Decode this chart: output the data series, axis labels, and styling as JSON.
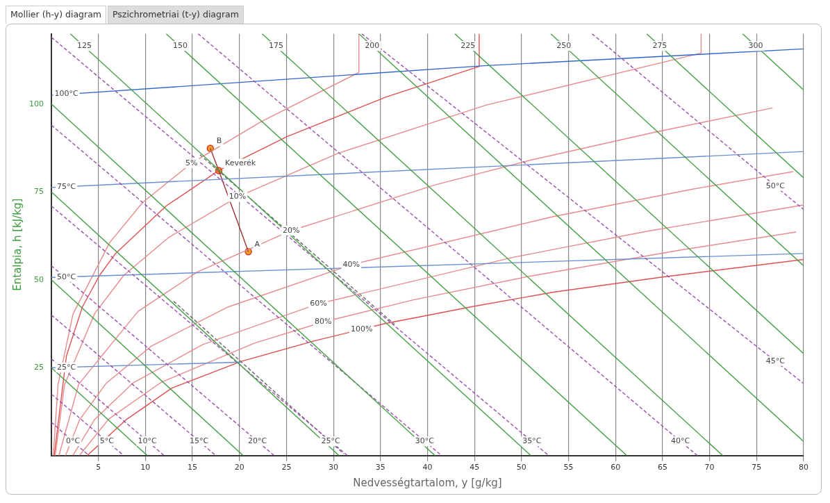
{
  "chart_data": {
    "type": "line",
    "title": "Mollier (h-y) diagram",
    "xlabel": "Nedvességtartalom, y [g/kg]",
    "ylabel": "Entalpia, h [kJ/kg]",
    "xlim": [
      0,
      80
    ],
    "ylim": [
      0,
      120
    ],
    "xticks": [
      5,
      10,
      15,
      20,
      25,
      30,
      35,
      40,
      45,
      50,
      55,
      60,
      65,
      70,
      75,
      80
    ],
    "yticks": [
      25,
      50,
      75,
      100
    ],
    "grid": "x",
    "legend": false,
    "marker": "none",
    "line_style": "solid",
    "series": [
      {
        "color": "#45a045",
        "x": [
          0,
          10.2
        ],
        "values": [
          25,
          0
        ]
      },
      {
        "color": "#45a045",
        "x": [
          0,
          20.4
        ],
        "values": [
          50,
          0
        ]
      },
      {
        "color": "#45a045",
        "x": [
          0,
          30.6
        ],
        "values": [
          75,
          0
        ]
      },
      {
        "color": "#45a045",
        "x": [
          0,
          40.8
        ],
        "values": [
          100,
          0
        ]
      },
      {
        "color": "#45a045",
        "x": [
          2,
          51
        ],
        "values": [
          120,
          0
        ]
      },
      {
        "color": "#45a045",
        "x": [
          12.2,
          61.2
        ],
        "values": [
          120,
          0
        ]
      },
      {
        "color": "#45a045",
        "x": [
          22.4,
          71.4
        ],
        "values": [
          120,
          0
        ]
      },
      {
        "color": "#45a045",
        "x": [
          32.7,
          80
        ],
        "values": [
          120,
          4
        ]
      },
      {
        "color": "#45a045",
        "x": [
          42.9,
          80
        ],
        "values": [
          120,
          29
        ]
      },
      {
        "color": "#45a045",
        "x": [
          53.1,
          80
        ],
        "values": [
          120,
          54
        ]
      },
      {
        "color": "#45a045",
        "x": [
          63.3,
          80
        ],
        "values": [
          120,
          79
        ]
      },
      {
        "color": "#45a045",
        "x": [
          73.5,
          80
        ],
        "values": [
          120,
          104
        ]
      },
      {
        "color": "#9b4fb0",
        "line_style": "dashed",
        "x": [
          0,
          4
        ],
        "values": [
          9.5,
          0
        ]
      },
      {
        "color": "#9b4fb0",
        "line_style": "dashed",
        "x": [
          0,
          7.7
        ],
        "values": [
          17.5,
          0
        ]
      },
      {
        "color": "#9b4fb0",
        "line_style": "dashed",
        "x": [
          0,
          12
        ],
        "values": [
          27.5,
          0
        ]
      },
      {
        "color": "#9b4fb0",
        "line_style": "dashed",
        "x": [
          0,
          17.5
        ],
        "values": [
          40,
          0
        ]
      },
      {
        "color": "#9b4fb0",
        "line_style": "dashed",
        "x": [
          0,
          23.7
        ],
        "values": [
          54,
          0
        ]
      },
      {
        "color": "#9b4fb0",
        "line_style": "dashed",
        "x": [
          0,
          31.5
        ],
        "values": [
          71,
          0
        ]
      },
      {
        "color": "#9b4fb0",
        "line_style": "dashed",
        "x": [
          0,
          41.5
        ],
        "values": [
          94,
          0
        ]
      },
      {
        "color": "#9b4fb0",
        "line_style": "dashed",
        "x": [
          0,
          52.9
        ],
        "values": [
          119,
          0
        ]
      },
      {
        "color": "#9b4fb0",
        "line_style": "dashed",
        "x": [
          15.6,
          68.7
        ],
        "values": [
          120,
          0
        ]
      },
      {
        "color": "#9b4fb0",
        "line_style": "dashed",
        "x": [
          33,
          80
        ],
        "values": [
          120,
          20.5
        ]
      },
      {
        "color": "#9b4fb0",
        "line_style": "dashed",
        "x": [
          57.5,
          80
        ],
        "values": [
          120,
          70
        ]
      },
      {
        "color": "#3366cc",
        "x": [
          0,
          46,
          80
        ],
        "values": [
          102.5,
          110.9,
          115.7
        ]
      },
      {
        "color": "#6a8fcf",
        "x": [
          0,
          80
        ],
        "values": [
          76.3,
          86.5
        ]
      },
      {
        "color": "#6a8fcf",
        "x": [
          0,
          80
        ],
        "values": [
          50.7,
          57.5
        ]
      },
      {
        "color": "#6a8fcf",
        "x": [
          0,
          20.2
        ],
        "values": [
          25,
          26.6
        ]
      },
      {
        "color": "#e05050",
        "x": [
          3.8,
          7.9,
          12.8,
          20.2,
          27.9,
          35.4,
          45,
          53.4,
          65,
          80
        ],
        "values": [
          0,
          10.1,
          19.2,
          26.8,
          32.6,
          37.5,
          42.5,
          46.5,
          50.8,
          55.8
        ]
      },
      {
        "color": "#e88a8a",
        "x": [
          3,
          6.1,
          11.7,
          21.6,
          28.9,
          38.5,
          51,
          67.2,
          79.2
        ],
        "values": [
          0.1,
          10.4,
          20.9,
          32,
          38,
          44.3,
          51.1,
          58.6,
          63.6
        ]
      },
      {
        "color": "#e88a8a",
        "x": [
          2.3,
          4.6,
          8.7,
          16.1,
          28.4,
          49.1,
          63.3,
          80
        ],
        "values": [
          0.1,
          10.3,
          20.7,
          31.6,
          43.2,
          56.4,
          63.8,
          71.3
        ]
      },
      {
        "color": "#e88a8a",
        "x": [
          1.5,
          3,
          5.8,
          10.6,
          18.7,
          31.9,
          53.2,
          68.2,
          78.9
        ],
        "values": [
          0,
          10.2,
          20.5,
          31.1,
          42.2,
          54.3,
          67.9,
          75.8,
          80.8
        ]
      },
      {
        "color": "#e88a8a",
        "x": [
          0.8,
          2.9,
          9.2,
          15.5,
          25.5,
          40.8,
          51.2,
          64.2,
          76.7
        ],
        "values": [
          0,
          20.3,
          41,
          52.2,
          64,
          77,
          84.2,
          92,
          98.9
        ]
      },
      {
        "color": "#e88a8a",
        "x": [
          0.4,
          1.4,
          4.6,
          7.7,
          12.5,
          19.8,
          30.5,
          46.2,
          69.1,
          69.1
        ],
        "values": [
          0,
          20.2,
          40.4,
          51.3,
          62.1,
          73.6,
          86,
          99.7,
          114.5,
          120
        ]
      },
      {
        "color": "#e88a8a",
        "x": [
          0.2,
          0.7,
          2.3,
          6.2,
          9.7,
          14.9,
          22.3,
          32.7,
          32.7
        ],
        "values": [
          0,
          20.1,
          40.3,
          60.6,
          72,
          83.2,
          95,
          109,
          120
        ]
      },
      {
        "color": "#e05050",
        "x": [
          0.3,
          1.6,
          3.3,
          5.1,
          6.8,
          12.2,
          17.8,
          25.1,
          35.6,
          45.5,
          45.5
        ],
        "values": [
          0,
          28.4,
          42.3,
          51.2,
          57.4,
          71,
          81.1,
          90.8,
          102,
          110.7,
          120
        ]
      },
      {
        "color": "#666666",
        "line_style": "dashed",
        "x": [
          15.8,
          36.5
        ],
        "values": [
          85.6,
          37.3
        ]
      },
      {
        "color": "#666666",
        "line_style": "dashed",
        "x": [
          13,
          31.1
        ],
        "values": [
          43.9,
          0.5
        ]
      },
      {
        "color": "#a03030",
        "x": [
          20.95,
          17.8,
          16.9
        ],
        "values": [
          58,
          81.1,
          87.4
        ]
      },
      {
        "type": "scatter",
        "marker": "circle",
        "color": "#f0a020",
        "x": [
          20.95,
          16.9,
          17.8
        ],
        "values": [
          58,
          87.4,
          81.1
        ]
      }
    ],
    "annotations": [
      "Pszichrometriai (t-y) diagram",
      {
        "text": "A",
        "x": 20.95,
        "y": 58
      },
      {
        "text": "B",
        "x": 16.9,
        "y": 87.4
      },
      {
        "text": "Keverék",
        "x": 17.8,
        "y": 81.1
      },
      {
        "text": "100°C",
        "x": 1.6,
        "y": 102.8
      },
      {
        "text": "75°C",
        "x": 1.6,
        "y": 76.5
      },
      {
        "text": "50°C",
        "x": 1.6,
        "y": 50.8
      },
      {
        "text": "25°C",
        "x": 1.6,
        "y": 25.1
      },
      {
        "text": "5%",
        "x": 14.9,
        "y": 83.2
      },
      {
        "text": "10%",
        "x": 19.8,
        "y": 73.6
      },
      {
        "text": "20%",
        "x": 25.5,
        "y": 64
      },
      {
        "text": "40%",
        "x": 31.9,
        "y": 54.3
      },
      {
        "text": "60%",
        "x": 28.4,
        "y": 43.2
      },
      {
        "text": "80%",
        "x": 28.9,
        "y": 38
      },
      {
        "text": "100%",
        "x": 33,
        "y": 35.9
      },
      {
        "text": "125",
        "x": 3.5,
        "y": 116.5
      },
      {
        "text": "150",
        "x": 13.7,
        "y": 116.5
      },
      {
        "text": "175",
        "x": 23.9,
        "y": 116.5
      },
      {
        "text": "200",
        "x": 34.1,
        "y": 116.5
      },
      {
        "text": "225",
        "x": 44.3,
        "y": 116.5
      },
      {
        "text": "250",
        "x": 54.5,
        "y": 116.5
      },
      {
        "text": "275",
        "x": 64.7,
        "y": 116.5
      },
      {
        "text": "300",
        "x": 74.9,
        "y": 116.5
      },
      {
        "text": "0°C",
        "x": 2.3,
        "y": 4.04
      },
      {
        "text": "5°C",
        "x": 5.9,
        "y": 4.09
      },
      {
        "text": "10°C",
        "x": 10.2,
        "y": 4.1
      },
      {
        "text": "15°C",
        "x": 15.7,
        "y": 4.1
      },
      {
        "text": "20°C",
        "x": 21.9,
        "y": 4.1
      },
      {
        "text": "25°C",
        "x": 29.7,
        "y": 4.06
      },
      {
        "text": "30°C",
        "x": 39.7,
        "y": 4.08
      },
      {
        "text": "35°C",
        "x": 51.1,
        "y": 4.05
      },
      {
        "text": "40°C",
        "x": 66.9,
        "y": 4.07
      },
      {
        "text": "45°C",
        "x": 77,
        "y": 26.9
      },
      {
        "text": "50°C",
        "x": 77,
        "y": 76.7
      }
    ]
  }
}
